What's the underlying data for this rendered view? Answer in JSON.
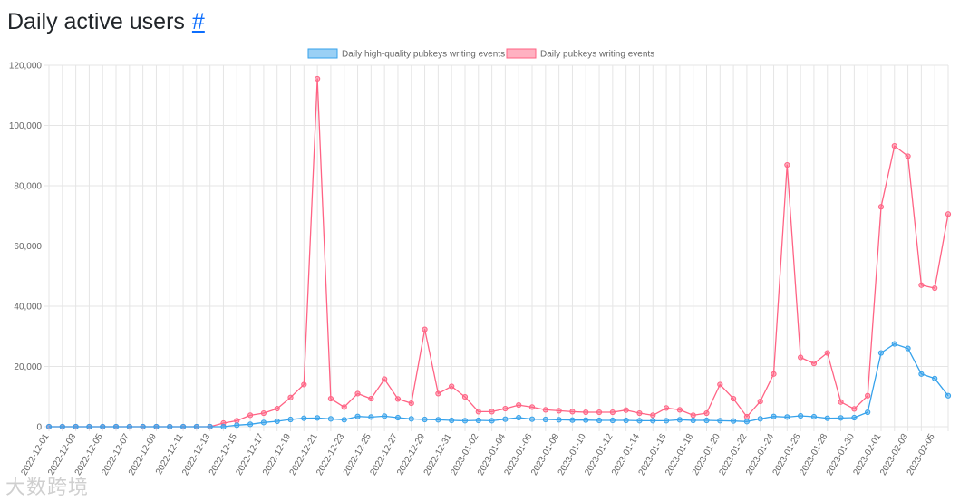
{
  "header": {
    "title": "Daily active users",
    "anchor": "#"
  },
  "watermark": {
    "text": "大数跨境"
  },
  "colors": {
    "series_high_quality": "#36a2eb",
    "series_all": "#ff6384",
    "series_high_quality_fill": "rgba(54,162,235,0.5)",
    "series_all_fill": "rgba(255,99,132,0.5)"
  },
  "chart_data": {
    "type": "line",
    "title": "",
    "xlabel": "",
    "ylabel": "",
    "ylim": [
      0,
      120000
    ],
    "y_ticks": [
      "0",
      "20,000",
      "40,000",
      "60,000",
      "80,000",
      "100,000",
      "120,000"
    ],
    "legend_position": "top",
    "grid": true,
    "x": [
      "2022-12-01",
      "2022-12-02",
      "2022-12-03",
      "2022-12-04",
      "2022-12-05",
      "2022-12-06",
      "2022-12-07",
      "2022-12-08",
      "2022-12-09",
      "2022-12-10",
      "2022-12-11",
      "2022-12-12",
      "2022-12-13",
      "2022-12-14",
      "2022-12-15",
      "2022-12-16",
      "2022-12-17",
      "2022-12-18",
      "2022-12-19",
      "2022-12-20",
      "2022-12-21",
      "2022-12-22",
      "2022-12-23",
      "2022-12-24",
      "2022-12-25",
      "2022-12-26",
      "2022-12-27",
      "2022-12-28",
      "2022-12-29",
      "2022-12-30",
      "2022-12-31",
      "2023-01-01",
      "2023-01-02",
      "2023-01-03",
      "2023-01-04",
      "2023-01-05",
      "2023-01-06",
      "2023-01-07",
      "2023-01-08",
      "2023-01-09",
      "2023-01-10",
      "2023-01-11",
      "2023-01-12",
      "2023-01-13",
      "2023-01-14",
      "2023-01-15",
      "2023-01-16",
      "2023-01-17",
      "2023-01-18",
      "2023-01-19",
      "2023-01-20",
      "2023-01-21",
      "2023-01-22",
      "2023-01-23",
      "2023-01-24",
      "2023-01-25",
      "2023-01-26",
      "2023-01-27",
      "2023-01-28",
      "2023-01-29",
      "2023-01-30",
      "2023-01-31",
      "2023-02-01",
      "2023-02-02",
      "2023-02-03",
      "2023-02-04",
      "2023-02-05",
      "2023-02-06"
    ],
    "x_tick_labels": [
      "2022-12-01",
      "2022-12-03",
      "2022-12-05",
      "2022-12-07",
      "2022-12-09",
      "2022-12-11",
      "2022-12-13",
      "2022-12-15",
      "2022-12-17",
      "2022-12-19",
      "2022-12-21",
      "2022-12-23",
      "2022-12-25",
      "2022-12-27",
      "2022-12-29",
      "2022-12-31",
      "2023-01-02",
      "2023-01-04",
      "2023-01-06",
      "2023-01-08",
      "2023-01-10",
      "2023-01-12",
      "2023-01-14",
      "2023-01-16",
      "2023-01-18",
      "2023-01-20",
      "2023-01-22",
      "2023-01-24",
      "2023-01-26",
      "2023-01-28",
      "2023-01-30",
      "2023-02-01",
      "2023-02-03",
      "2023-02-05"
    ],
    "series": [
      {
        "name": "Daily high-quality pubkeys writing events",
        "values": [
          0,
          0,
          0,
          0,
          0,
          0,
          0,
          0,
          0,
          0,
          0,
          0,
          0,
          0,
          500,
          800,
          1400,
          1800,
          2400,
          2800,
          2900,
          2600,
          2300,
          3400,
          3200,
          3500,
          3000,
          2600,
          2400,
          2300,
          2100,
          2000,
          2100,
          2000,
          2500,
          3000,
          2500,
          2400,
          2300,
          2200,
          2200,
          2100,
          2100,
          2100,
          2000,
          2000,
          2000,
          2300,
          2100,
          2100,
          2000,
          1900,
          1700,
          2600,
          3400,
          3200,
          3600,
          3300,
          2800,
          2900,
          3000,
          4800,
          24500,
          27500,
          26000,
          17500,
          16000,
          10300
        ]
      },
      {
        "name": "Daily pubkeys writing events",
        "values": [
          0,
          0,
          0,
          0,
          0,
          0,
          0,
          0,
          0,
          0,
          0,
          0,
          0,
          1200,
          2000,
          3800,
          4500,
          6000,
          9700,
          14000,
          115500,
          9300,
          6500,
          11000,
          9300,
          15800,
          9200,
          7800,
          32300,
          11000,
          13400,
          9900,
          5000,
          5000,
          6000,
          7200,
          6500,
          5600,
          5300,
          5000,
          4800,
          4800,
          4800,
          5500,
          4500,
          3800,
          6200,
          5600,
          3800,
          4500,
          14000,
          9300,
          3300,
          8400,
          17500,
          86900,
          23000,
          21000,
          24500,
          8200,
          5900,
          10300,
          73000,
          93200,
          89800,
          47000,
          46000,
          70600
        ]
      }
    ]
  }
}
